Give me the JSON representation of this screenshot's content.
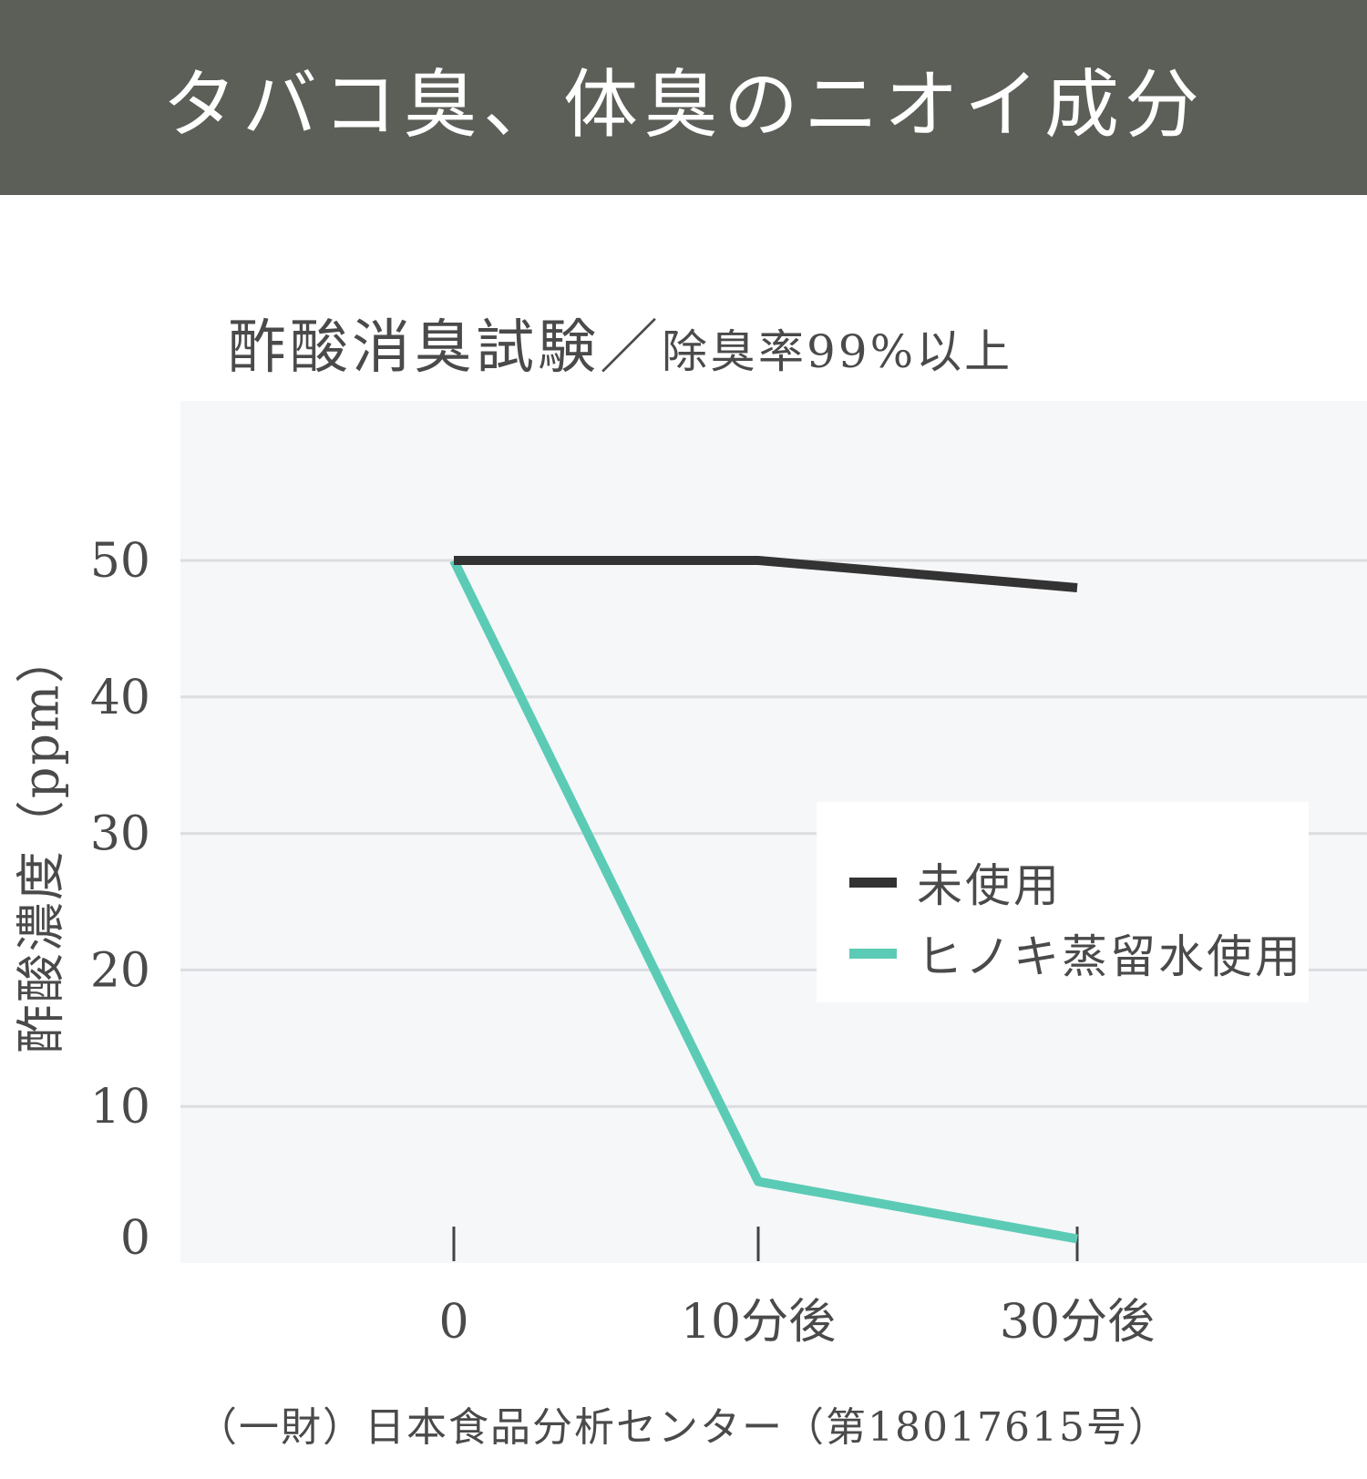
{
  "header": {
    "title": "タバコ臭、体臭のニオイ成分"
  },
  "chart_title": {
    "main": "酢酸消臭試験／",
    "sub": "除臭率99%以上"
  },
  "source_note": "（一財）日本食品分析センター（第18017615号）",
  "chart_data": {
    "type": "line",
    "title": "酢酸消臭試験／除臭率99%以上",
    "xlabel": "",
    "ylabel": "酢酸濃度（ppm）",
    "categories": [
      "0",
      "10分後",
      "30分後"
    ],
    "yticks": [
      0,
      10,
      20,
      30,
      40,
      50
    ],
    "ylim": [
      0,
      50
    ],
    "grid": true,
    "legend_position": "right",
    "series": [
      {
        "name": "未使用",
        "values": [
          50,
          50,
          48
        ],
        "color": "#333333"
      },
      {
        "name": "ヒノキ蒸留水使用",
        "values": [
          50,
          4.5,
          0.3
        ],
        "color": "#5ccbb5"
      }
    ]
  },
  "colors": {
    "header_bg": "#5c5f58",
    "plot_bg": "#f5f7f9",
    "grid": "#dcdde0",
    "text": "#4a4a4a"
  }
}
